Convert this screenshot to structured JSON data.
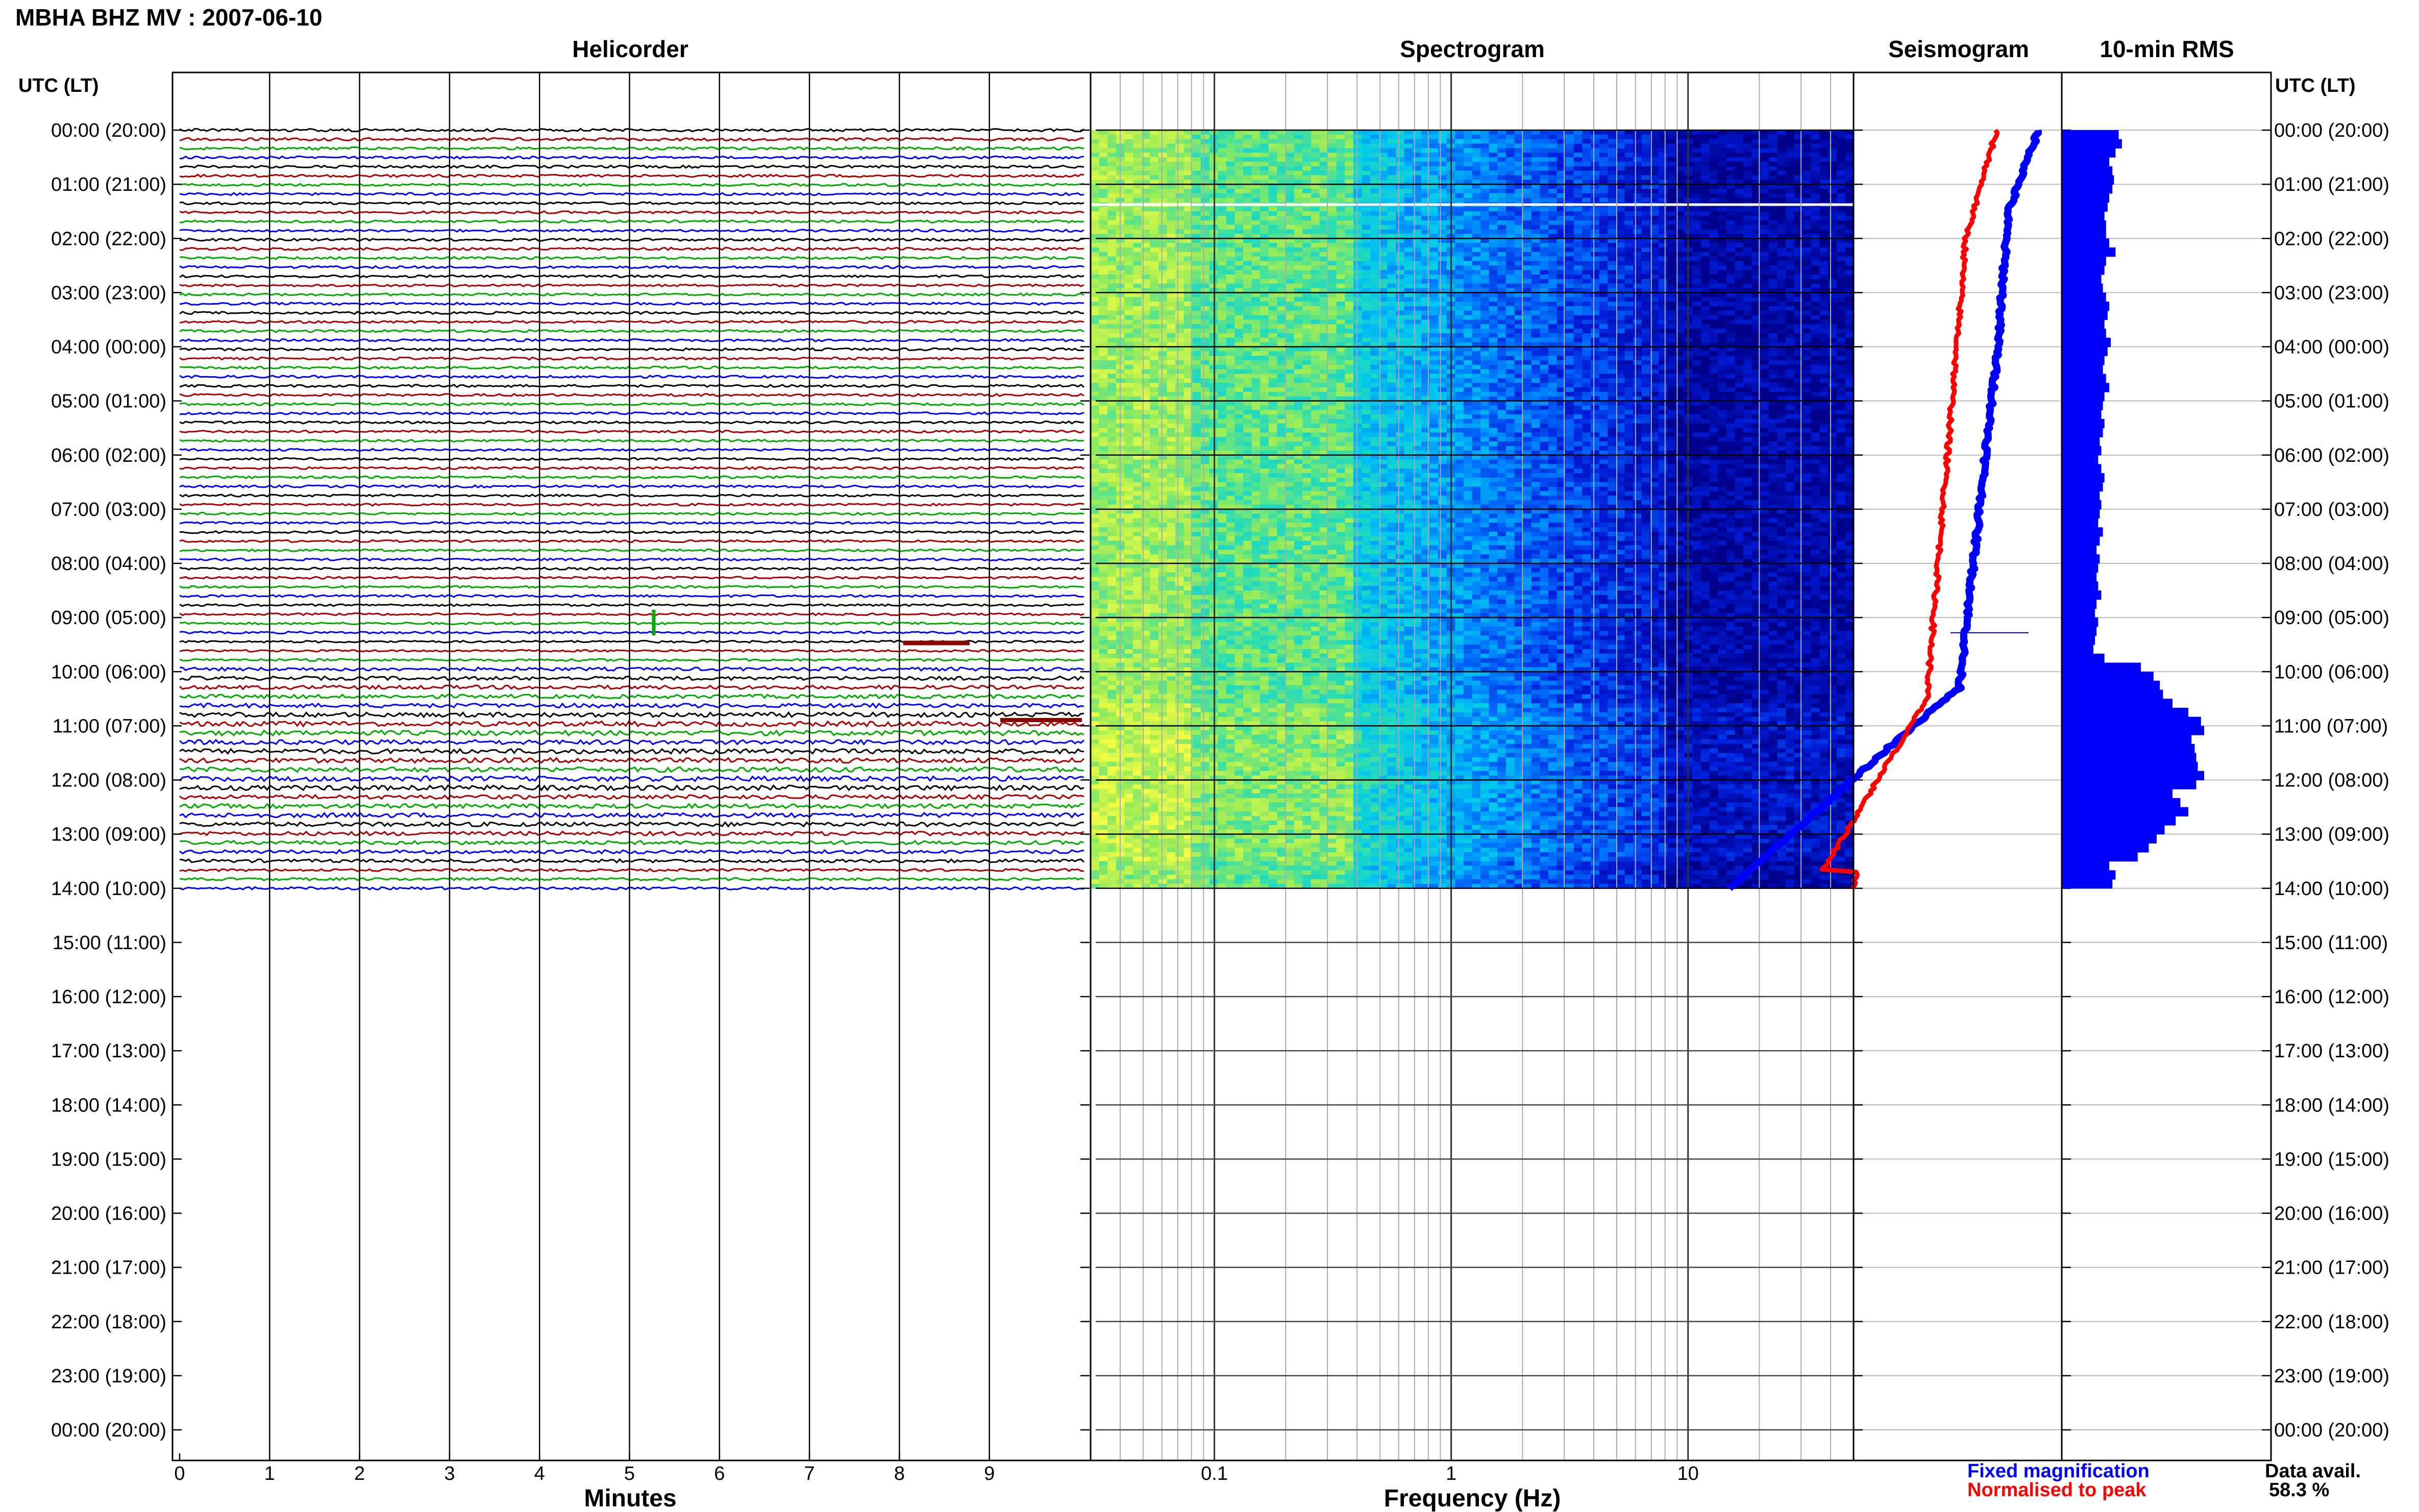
{
  "title": "MBHA BHZ MV : 2007-06-10",
  "utc_label_left": "UTC (LT)",
  "utc_label_right": "UTC (LT)",
  "panels": {
    "helicorder": "Helicorder",
    "spectrogram": "Spectrogram",
    "seismogram": "Seismogram",
    "rms": "10-min RMS"
  },
  "time_labels": [
    "00:00 (20:00)",
    "01:00 (21:00)",
    "02:00 (22:00)",
    "03:00 (23:00)",
    "04:00 (00:00)",
    "05:00 (01:00)",
    "06:00 (02:00)",
    "07:00 (03:00)",
    "08:00 (04:00)",
    "09:00 (05:00)",
    "10:00 (06:00)",
    "11:00 (07:00)",
    "12:00 (08:00)",
    "13:00 (09:00)",
    "14:00 (10:00)",
    "15:00 (11:00)",
    "16:00 (12:00)",
    "17:00 (13:00)",
    "18:00 (14:00)",
    "19:00 (15:00)",
    "20:00 (16:00)",
    "21:00 (17:00)",
    "22:00 (18:00)",
    "23:00 (19:00)",
    "00:00 (20:00)"
  ],
  "minutes_axis": {
    "label": "Minutes",
    "ticks": [
      "0",
      "1",
      "2",
      "3",
      "4",
      "5",
      "6",
      "7",
      "8",
      "9"
    ]
  },
  "freq_axis": {
    "label": "Frequency (Hz)",
    "ticks": [
      "0.1",
      "1",
      "10"
    ],
    "scale": "log",
    "range": [
      0.03,
      50
    ]
  },
  "legend": {
    "fixed": "Fixed magnification",
    "fixed_color": "#0000ff",
    "normalised": "Normalised to peak",
    "normalised_color": "#ff0000"
  },
  "data_avail": {
    "label": "Data avail.",
    "value": "58.3 %"
  },
  "colors": {
    "trace_cycle": [
      "#000000",
      "#aa0000",
      "#00aa00",
      "#0000ff"
    ],
    "spectrogram_low": "#00008b",
    "spectrogram_high": "#ffff40",
    "rms_bar": "#0000ff"
  },
  "chart_data": {
    "type": "bar",
    "title": "10-min RMS",
    "data_hours": 14,
    "rms_relative": [
      0.36,
      0.38,
      0.34,
      0.3,
      0.32,
      0.33,
      0.32,
      0.3,
      0.29,
      0.27,
      0.28,
      0.28,
      0.3,
      0.34,
      0.28,
      0.27,
      0.25,
      0.26,
      0.28,
      0.3,
      0.29,
      0.27,
      0.28,
      0.31,
      0.29,
      0.27,
      0.26,
      0.28,
      0.3,
      0.27,
      0.26,
      0.25,
      0.27,
      0.26,
      0.24,
      0.25,
      0.23,
      0.25,
      0.27,
      0.26,
      0.24,
      0.25,
      0.24,
      0.23,
      0.26,
      0.24,
      0.22,
      0.24,
      0.23,
      0.22,
      0.23,
      0.25,
      0.22,
      0.21,
      0.23,
      0.22,
      0.21,
      0.2,
      0.27,
      0.5,
      0.58,
      0.62,
      0.64,
      0.7,
      0.8,
      0.88,
      0.9,
      0.82,
      0.84,
      0.85,
      0.86,
      0.9,
      0.85,
      0.7,
      0.75,
      0.8,
      0.72,
      0.65,
      0.6,
      0.55,
      0.48,
      0.3,
      0.34,
      0.32
    ]
  }
}
